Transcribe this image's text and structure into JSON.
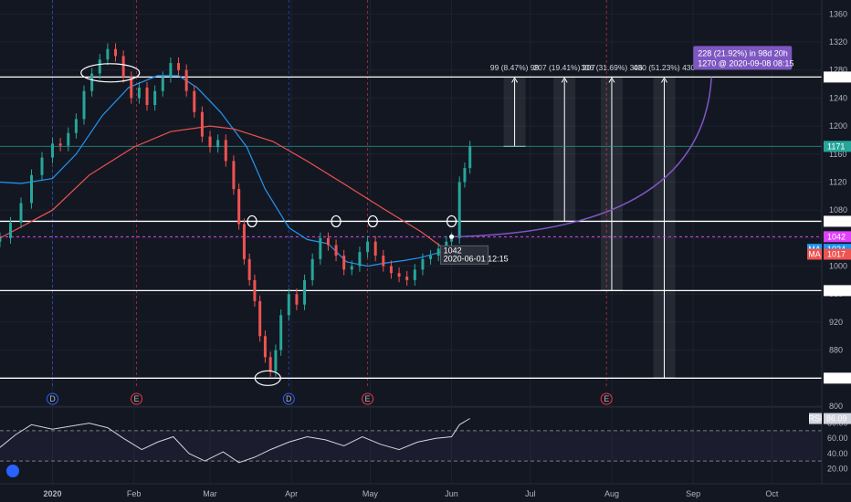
{
  "chart_data": [
    {
      "type": "candlestick",
      "price_axis": {
        "ylim": [
          800,
          1380
        ],
        "ticks": [
          800,
          840,
          880,
          920,
          960,
          1000,
          1040,
          1080,
          1120,
          1160,
          1200,
          1240,
          1280,
          1320,
          1360
        ],
        "tags": [
          {
            "value": 1270,
            "label": "1270",
            "style": "white"
          },
          {
            "value": 1171,
            "label": "1171",
            "style": "teal"
          },
          {
            "value": 1064,
            "label": "1064",
            "style": "white"
          },
          {
            "value": 1042,
            "label": "1042",
            "style": "magenta"
          },
          {
            "value": 1024,
            "label": "1024",
            "style": "blue",
            "prefix": "MA"
          },
          {
            "value": 1017,
            "label": "1017",
            "style": "red",
            "prefix": "MA"
          },
          {
            "value": 965,
            "label": "965",
            "style": "white"
          },
          {
            "value": 840,
            "label": "840",
            "style": "white"
          }
        ]
      },
      "time_axis": {
        "start": "2019-12-12",
        "end": "2020-10-20",
        "labels": [
          {
            "date": "2020-01-01",
            "label": "2020",
            "bold": true
          },
          {
            "date": "2020-02-01",
            "label": "Feb"
          },
          {
            "date": "2020-03-01",
            "label": "Mar"
          },
          {
            "date": "2020-04-01",
            "label": "Apr"
          },
          {
            "date": "2020-05-01",
            "label": "May"
          },
          {
            "date": "2020-06-01",
            "label": "Jun"
          },
          {
            "date": "2020-07-01",
            "label": "Jul"
          },
          {
            "date": "2020-08-01",
            "label": "Aug"
          },
          {
            "date": "2020-09-01",
            "label": "Sep"
          },
          {
            "date": "2020-10-01",
            "label": "Oct"
          }
        ]
      },
      "horizontal_levels": [
        1270,
        1064,
        965,
        840
      ],
      "current_price": 1171,
      "crosshair": {
        "price": 1042,
        "date": "2020-06-01",
        "label": "1042",
        "sublabel": "2020-06-01 12:15"
      },
      "projection": {
        "label": "228 (21.92%) in 98d 20h",
        "sublabel": "1270 @ 2020-09-08  08:15",
        "from_date": "2020-06-01",
        "from_price": 1042,
        "to_date": "2020-09-08",
        "to_price": 1270
      },
      "measures": [
        {
          "label": "99 (8.47%) 99",
          "base": 1171,
          "top": 1270,
          "date": "2020-06-25"
        },
        {
          "label": "207 (19.41%) 207",
          "base": 1064,
          "top": 1270,
          "date": "2020-07-14"
        },
        {
          "label": "306 (31.69%) 306",
          "base": 965,
          "top": 1270,
          "date": "2020-08-01"
        },
        {
          "label": "430 (51.23%) 430",
          "base": 840,
          "top": 1270,
          "date": "2020-08-21"
        }
      ],
      "event_markers": [
        {
          "date": "2020-01-01",
          "label": "D",
          "kind": "dividend",
          "color": "#2962ff"
        },
        {
          "date": "2020-02-02",
          "label": "E",
          "kind": "earnings",
          "color": "#f23645"
        },
        {
          "date": "2020-03-31",
          "label": "D",
          "kind": "dividend",
          "color": "#2962ff"
        },
        {
          "date": "2020-04-30",
          "label": "E",
          "kind": "earnings",
          "color": "#f23645"
        },
        {
          "date": "2020-07-30",
          "label": "E",
          "kind": "earnings",
          "color": "#f23645"
        }
      ],
      "ma_series": [
        {
          "label": "MA",
          "color": "#2196f3",
          "last": 1024,
          "points": [
            [
              "2019-12-12",
              1120
            ],
            [
              "2019-12-20",
              1118
            ],
            [
              "2020-01-01",
              1125
            ],
            [
              "2020-01-10",
              1160
            ],
            [
              "2020-01-20",
              1215
            ],
            [
              "2020-01-30",
              1255
            ],
            [
              "2020-02-10",
              1272
            ],
            [
              "2020-02-18",
              1272
            ],
            [
              "2020-02-25",
              1255
            ],
            [
              "2020-03-05",
              1220
            ],
            [
              "2020-03-15",
              1170
            ],
            [
              "2020-03-22",
              1110
            ],
            [
              "2020-03-31",
              1055
            ],
            [
              "2020-04-07",
              1038
            ],
            [
              "2020-04-15",
              1032
            ],
            [
              "2020-04-22",
              1006
            ],
            [
              "2020-04-30",
              1000
            ],
            [
              "2020-05-06",
              1004
            ],
            [
              "2020-05-14",
              1008
            ],
            [
              "2020-05-20",
              1012
            ],
            [
              "2020-05-28",
              1020
            ],
            [
              "2020-06-01",
              1024
            ]
          ]
        },
        {
          "label": "MA",
          "color": "#ef5350",
          "last": 1017,
          "points": [
            [
              "2019-12-12",
              1040
            ],
            [
              "2020-01-01",
              1080
            ],
            [
              "2020-01-15",
              1130
            ],
            [
              "2020-02-01",
              1170
            ],
            [
              "2020-02-15",
              1192
            ],
            [
              "2020-03-01",
              1200
            ],
            [
              "2020-03-10",
              1196
            ],
            [
              "2020-03-25",
              1178
            ],
            [
              "2020-04-07",
              1150
            ],
            [
              "2020-04-22",
              1115
            ],
            [
              "2020-05-06",
              1082
            ],
            [
              "2020-05-20",
              1050
            ],
            [
              "2020-06-01",
              1017
            ]
          ]
        }
      ],
      "ohlc": [
        {
          "d": "2019-12-12",
          "c": 1040
        },
        {
          "d": "2019-12-16",
          "c": 1062
        },
        {
          "d": "2019-12-20",
          "c": 1090
        },
        {
          "d": "2019-12-24",
          "c": 1130
        },
        {
          "d": "2019-12-28",
          "c": 1155
        },
        {
          "d": "2020-01-01",
          "c": 1175
        },
        {
          "d": "2020-01-04",
          "c": 1172
        },
        {
          "d": "2020-01-07",
          "c": 1190
        },
        {
          "d": "2020-01-10",
          "c": 1210
        },
        {
          "d": "2020-01-13",
          "c": 1250
        },
        {
          "d": "2020-01-16",
          "c": 1275
        },
        {
          "d": "2020-01-19",
          "c": 1295
        },
        {
          "d": "2020-01-22",
          "c": 1310
        },
        {
          "d": "2020-01-25",
          "c": 1300
        },
        {
          "d": "2020-01-28",
          "c": 1270
        },
        {
          "d": "2020-01-31",
          "c": 1240
        },
        {
          "d": "2020-02-03",
          "c": 1255
        },
        {
          "d": "2020-02-06",
          "c": 1230
        },
        {
          "d": "2020-02-09",
          "c": 1250
        },
        {
          "d": "2020-02-12",
          "c": 1270
        },
        {
          "d": "2020-02-15",
          "c": 1290
        },
        {
          "d": "2020-02-18",
          "c": 1280
        },
        {
          "d": "2020-02-21",
          "c": 1250
        },
        {
          "d": "2020-02-24",
          "c": 1220
        },
        {
          "d": "2020-02-27",
          "c": 1185
        },
        {
          "d": "2020-03-01",
          "c": 1170
        },
        {
          "d": "2020-03-04",
          "c": 1180
        },
        {
          "d": "2020-03-07",
          "c": 1150
        },
        {
          "d": "2020-03-10",
          "c": 1110
        },
        {
          "d": "2020-03-12",
          "c": 1060
        },
        {
          "d": "2020-03-14",
          "c": 1010
        },
        {
          "d": "2020-03-16",
          "c": 980
        },
        {
          "d": "2020-03-18",
          "c": 950
        },
        {
          "d": "2020-03-20",
          "c": 900
        },
        {
          "d": "2020-03-22",
          "c": 870
        },
        {
          "d": "2020-03-24",
          "c": 850
        },
        {
          "d": "2020-03-26",
          "c": 880
        },
        {
          "d": "2020-03-28",
          "c": 930
        },
        {
          "d": "2020-03-31",
          "c": 960
        },
        {
          "d": "2020-04-03",
          "c": 945
        },
        {
          "d": "2020-04-06",
          "c": 980
        },
        {
          "d": "2020-04-09",
          "c": 1010
        },
        {
          "d": "2020-04-12",
          "c": 1040
        },
        {
          "d": "2020-04-15",
          "c": 1030
        },
        {
          "d": "2020-04-18",
          "c": 1015
        },
        {
          "d": "2020-04-21",
          "c": 995
        },
        {
          "d": "2020-04-24",
          "c": 1000
        },
        {
          "d": "2020-04-27",
          "c": 1020
        },
        {
          "d": "2020-04-30",
          "c": 1035
        },
        {
          "d": "2020-05-03",
          "c": 1015
        },
        {
          "d": "2020-05-06",
          "c": 1000
        },
        {
          "d": "2020-05-09",
          "c": 990
        },
        {
          "d": "2020-05-12",
          "c": 985
        },
        {
          "d": "2020-05-15",
          "c": 980
        },
        {
          "d": "2020-05-18",
          "c": 995
        },
        {
          "d": "2020-05-21",
          "c": 1010
        },
        {
          "d": "2020-05-24",
          "c": 1015
        },
        {
          "d": "2020-05-27",
          "c": 1025
        },
        {
          "d": "2020-05-30",
          "c": 1035
        },
        {
          "d": "2020-06-01",
          "c": 1040
        },
        {
          "d": "2020-06-04",
          "c": 1120
        },
        {
          "d": "2020-06-06",
          "c": 1140
        },
        {
          "d": "2020-06-08",
          "c": 1171
        }
      ]
    },
    {
      "type": "line",
      "indicator": "RSI",
      "ylim": [
        0,
        100
      ],
      "ticks": [
        20,
        40,
        60,
        80
      ],
      "tick_labels": [
        "20.00",
        "40.00",
        "60.00",
        "80.00"
      ],
      "bands": [
        30,
        70
      ],
      "tag": {
        "prefix": "RSI",
        "value": "86.09"
      },
      "points": [
        [
          "2019-12-12",
          48
        ],
        [
          "2019-12-18",
          65
        ],
        [
          "2019-12-24",
          78
        ],
        [
          "2020-01-01",
          72
        ],
        [
          "2020-01-08",
          76
        ],
        [
          "2020-01-15",
          80
        ],
        [
          "2020-01-22",
          74
        ],
        [
          "2020-01-28",
          60
        ],
        [
          "2020-02-04",
          45
        ],
        [
          "2020-02-10",
          55
        ],
        [
          "2020-02-16",
          62
        ],
        [
          "2020-02-22",
          40
        ],
        [
          "2020-02-28",
          30
        ],
        [
          "2020-03-06",
          42
        ],
        [
          "2020-03-12",
          28
        ],
        [
          "2020-03-18",
          35
        ],
        [
          "2020-03-24",
          45
        ],
        [
          "2020-03-31",
          55
        ],
        [
          "2020-04-07",
          62
        ],
        [
          "2020-04-14",
          58
        ],
        [
          "2020-04-21",
          50
        ],
        [
          "2020-04-28",
          62
        ],
        [
          "2020-05-05",
          52
        ],
        [
          "2020-05-12",
          45
        ],
        [
          "2020-05-19",
          55
        ],
        [
          "2020-05-26",
          60
        ],
        [
          "2020-06-01",
          62
        ],
        [
          "2020-06-04",
          78
        ],
        [
          "2020-06-08",
          86.09
        ]
      ]
    }
  ]
}
